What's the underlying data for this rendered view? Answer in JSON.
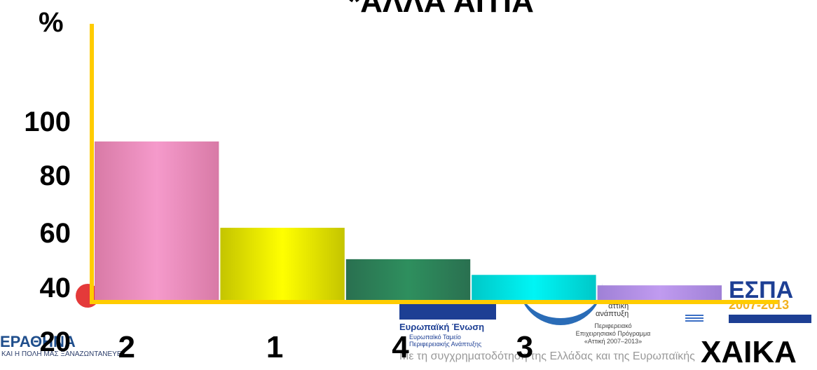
{
  "chart_data": {
    "type": "bar",
    "title": "*ΑΛΛΑ ΑΙΤΙΑ",
    "ylabel": "%",
    "xlabel": "ΧΑΙΚΑ",
    "categories": [
      "2",
      "1",
      "4",
      "3",
      ""
    ],
    "values": [
      92,
      59,
      47,
      41,
      37
    ],
    "ylim": [
      20,
      100
    ],
    "yticks": [
      "20",
      "40",
      "60",
      "80",
      "100"
    ],
    "grid": false,
    "colors": {
      "axis": "#ffcc00",
      "bars": [
        "#f59acb",
        "#ffff00",
        "#2e8f5e",
        "#00f5f5",
        "#c09bf0"
      ],
      "bars_dark": [
        "#d87aa6",
        "#c4c400",
        "#2a7050",
        "#00c8c8",
        "#9f80d6"
      ]
    }
  },
  "background": {
    "athens_logo": "ΑΘΗΝΑ",
    "athens_sub": "ΚΑΙ Η ΠΟΛΗ ΜΑΣ ΞΑΝΑΖΩΝΤΑΝΕΥΕΙ",
    "eu_title": "Ευρωπαϊκή Ένωση",
    "eu_sub1": "Ευρωπαϊκό Ταμείο",
    "eu_sub2": "Περιφερειακής Ανάπτυξης",
    "attiki1": "αττική",
    "attiki2": "ανάπτυξη",
    "periph1": "Περιφερειακό",
    "periph2": "Επιχειρησιακό Πρόγραμμα",
    "periph3": "«Αττική 2007–2013»",
    "espa": "ΕΣΠΑ",
    "espa_years": "2007-2013",
    "footer": "Με τη συγχρηματοδότηση της Ελλάδας και της Ευρωπαϊκής"
  }
}
